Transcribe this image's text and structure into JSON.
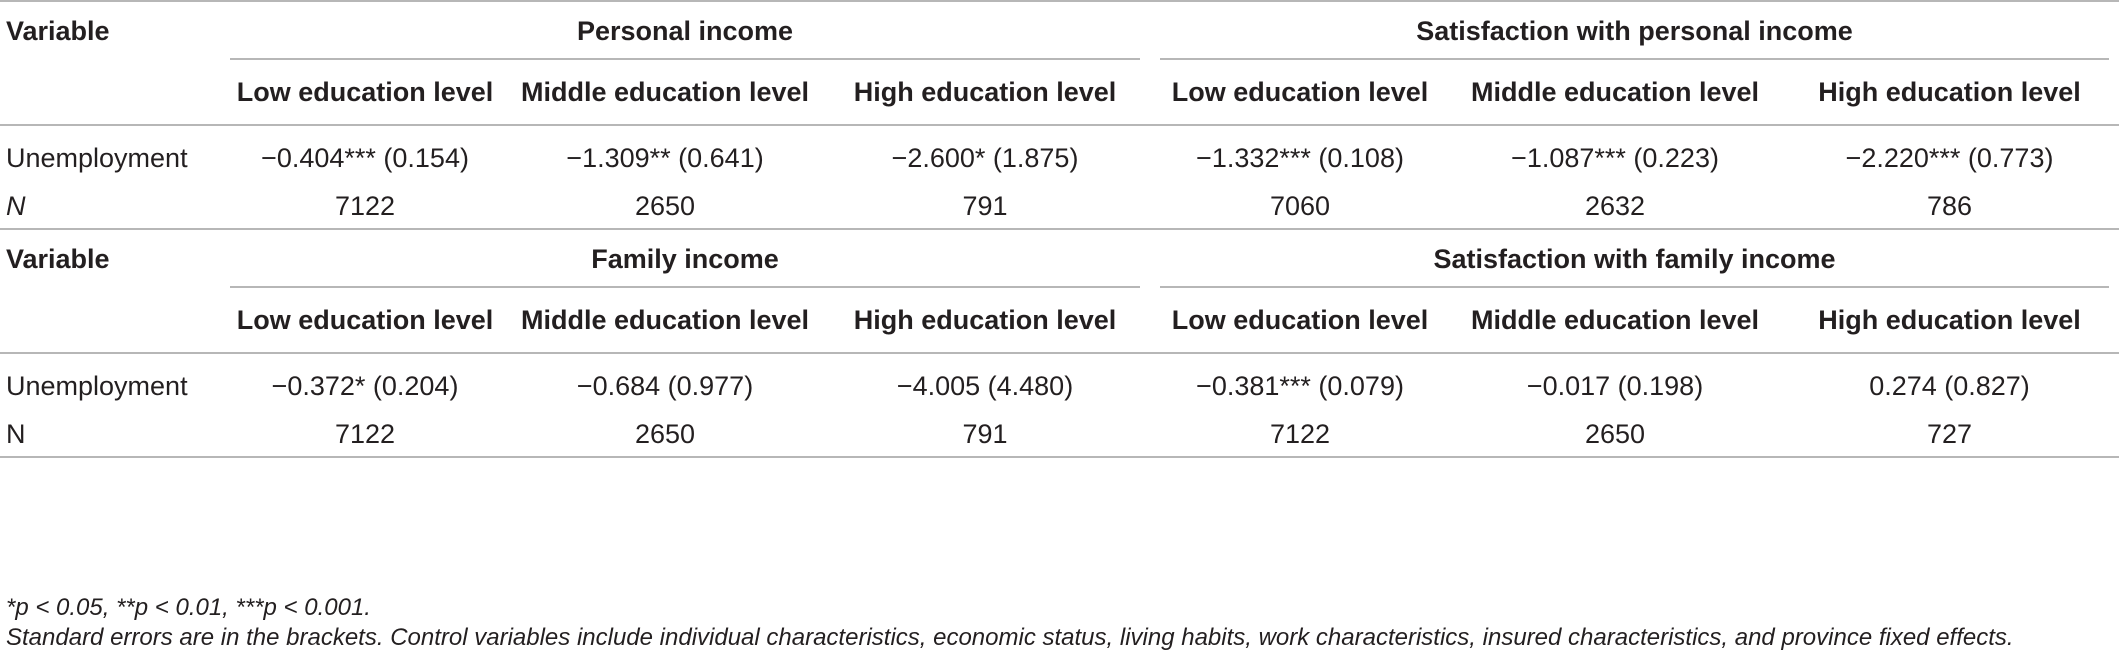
{
  "panels": [
    {
      "var_header": "Variable",
      "groups": [
        "Personal income",
        "Satisfaction with personal income"
      ],
      "subheaders": [
        "Low education level",
        "Middle education level",
        "High education level",
        "Low education level",
        "Middle education level",
        "High education level"
      ],
      "rows": [
        {
          "label": "Unemployment",
          "values": [
            "−0.404*** (0.154)",
            "−1.309** (0.641)",
            "−2.600* (1.875)",
            "−1.332*** (0.108)",
            "−1.087*** (0.223)",
            "−2.220*** (0.773)"
          ]
        },
        {
          "label": "N",
          "values": [
            "7122",
            "2650",
            "791",
            "7060",
            "2632",
            "786"
          ]
        }
      ]
    },
    {
      "var_header": "Variable",
      "groups": [
        "Family income",
        "Satisfaction with family income"
      ],
      "subheaders": [
        "Low education level",
        "Middle education level",
        "High education level",
        "Low education level",
        "Middle education level",
        "High education level"
      ],
      "rows": [
        {
          "label": "Unemployment",
          "values": [
            "−0.372* (0.204)",
            "−0.684 (0.977)",
            "−4.005 (4.480)",
            "−0.381*** (0.079)",
            "−0.017 (0.198)",
            "0.274 (0.827)"
          ]
        },
        {
          "label": "N",
          "values": [
            "7122",
            "2650",
            "791",
            "7122",
            "2650",
            "727"
          ]
        }
      ]
    }
  ],
  "notes": {
    "significance": "*p < 0.05, **p < 0.01, ***p < 0.001.",
    "standard_errors": "Standard errors are in the brackets. Control variables include individual characteristics, economic status, living habits, work characteristics, insured characteristics, and province fixed effects."
  }
}
